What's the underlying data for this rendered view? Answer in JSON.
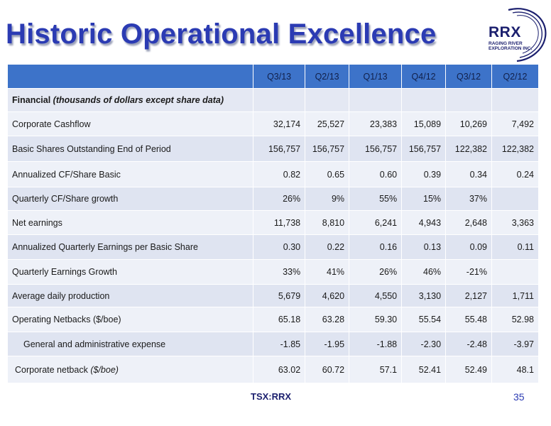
{
  "title": "Historic Operational Excellence",
  "logo": {
    "name": "RRX",
    "line1": "RAGING RIVER",
    "line2": "EXPLORATION INC."
  },
  "table": {
    "columns": [
      "Q3/13",
      "Q2/13",
      "Q1/13",
      "Q4/12",
      "Q3/12",
      "Q2/12"
    ],
    "section_label": "Financial",
    "section_note": "(thousands of dollars except share data)",
    "rows": [
      {
        "label": "Corporate Cashflow",
        "values": [
          "32,174",
          "25,527",
          "23,383",
          "15,089",
          "10,269",
          "7,492"
        ]
      },
      {
        "label": "Basic Shares Outstanding End of Period",
        "values": [
          "156,757",
          "156,757",
          "156,757",
          "156,757",
          "122,382",
          "122,382"
        ]
      },
      {
        "label": "Annualized CF/Share Basic",
        "values": [
          "0.82",
          "0.65",
          "0.60",
          "0.39",
          "0.34",
          "0.24"
        ]
      },
      {
        "label": "Quarterly CF/Share growth",
        "values": [
          "26%",
          "9%",
          "55%",
          "15%",
          "37%",
          ""
        ]
      },
      {
        "label": "Net earnings",
        "values": [
          "11,738",
          "8,810",
          "6,241",
          "4,943",
          "2,648",
          "3,363"
        ]
      },
      {
        "label": "Annualized Quarterly Earnings per Basic Share",
        "values": [
          "0.30",
          "0.22",
          "0.16",
          "0.13",
          "0.09",
          "0.11"
        ]
      },
      {
        "label": "Quarterly Earnings Growth",
        "values": [
          "33%",
          "41%",
          "26%",
          "46%",
          "-21%",
          ""
        ]
      },
      {
        "label": "Average daily production",
        "values": [
          "5,679",
          "4,620",
          "4,550",
          "3,130",
          "2,127",
          "1,711"
        ]
      },
      {
        "label": "Operating Netbacks ($/boe)",
        "values": [
          "65.18",
          "63.28",
          "59.30",
          "55.54",
          "55.48",
          "52.98"
        ]
      },
      {
        "label": "General and administrative expense",
        "values": [
          "-1.85",
          "-1.95",
          "-1.88",
          "-2.30",
          "-2.48",
          "-3.97"
        ]
      },
      {
        "label": "Corporate netback",
        "label_note": "($/boe)",
        "values": [
          "63.02",
          "60.72",
          "57.1",
          "52.41",
          "52.49",
          "48.1"
        ]
      }
    ]
  },
  "footer": {
    "ticker": "TSX:RRX",
    "page": "35"
  },
  "colors": {
    "title": "#2b3bb3",
    "header": "#3d73c9",
    "row_dark": "#dfe4f1",
    "row_light": "#eef1f8"
  }
}
